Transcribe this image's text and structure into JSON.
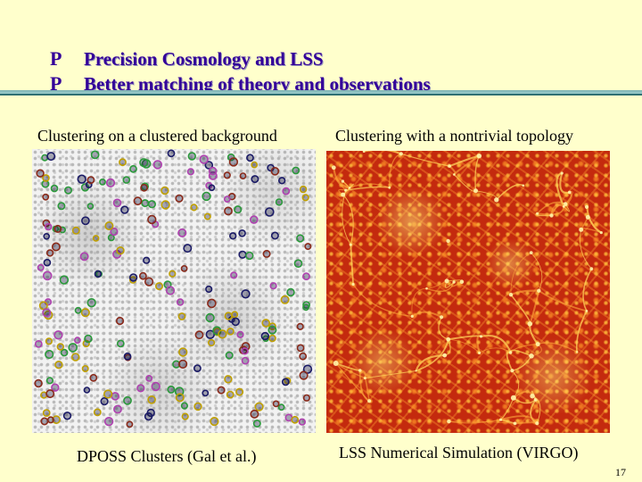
{
  "slide": {
    "bullets": [
      {
        "glyph": "P",
        "glyph_icon": "flag-bullet-icon",
        "text": "Precision Cosmology and LSS"
      },
      {
        "glyph": "P",
        "glyph_icon": "flag-bullet-icon",
        "text": "Better matching of theory and observations"
      }
    ],
    "left_panel": {
      "top_caption": "Clustering on a clustered background",
      "bottom_caption": "DPOSS Clusters (Gal et al.)"
    },
    "right_panel": {
      "top_caption": "Clustering with a nontrivial topology",
      "bottom_caption": "LSS Numerical Simulation (VIRGO)"
    },
    "page_number": "17"
  },
  "colors": {
    "background": "#ffffcc",
    "bullet_text": "#330099",
    "rule_dark": "#2e6f73",
    "rule_light": "#99cccc",
    "marker_colors": [
      "#1a1a66",
      "#2a9a3a",
      "#b040b0",
      "#8a2a1a",
      "#c0a000"
    ],
    "simulation_base": "#c42a0e"
  }
}
